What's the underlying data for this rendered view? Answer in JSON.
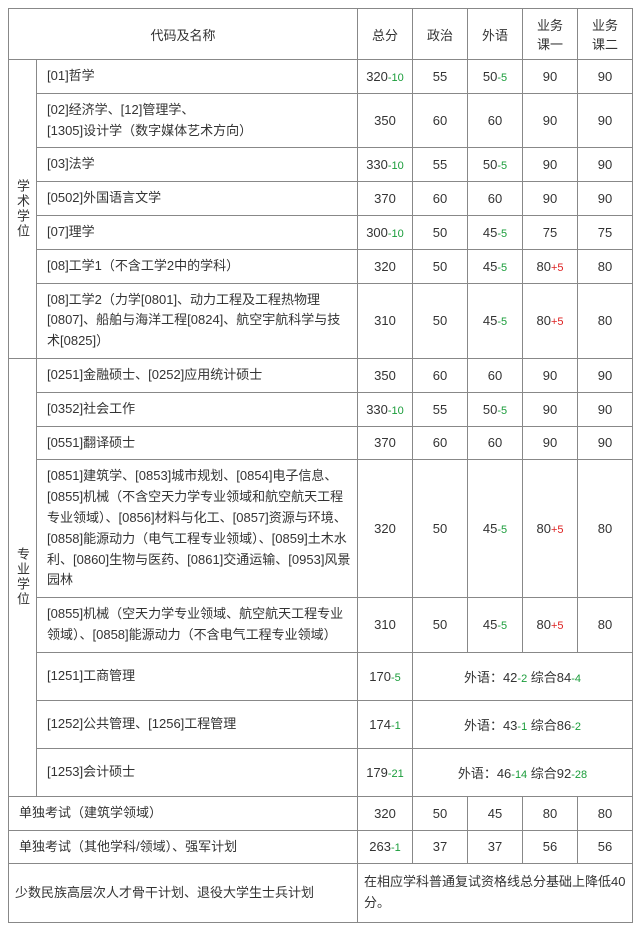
{
  "headers": {
    "name": "代码及名称",
    "total": "总分",
    "politics": "政治",
    "foreign": "外语",
    "biz1": "业务\n课一",
    "biz2": "业务\n课二"
  },
  "cat1": "学术学位",
  "cat2": "专业学位",
  "rows_academic": [
    {
      "name": "[01]哲学",
      "total": "320",
      "total_d": "-10",
      "pol": "55",
      "pol_d": "",
      "for": "50",
      "for_d": "-5",
      "b1": "90",
      "b1_d": "",
      "b2": "90",
      "b2_d": ""
    },
    {
      "name": "[02]经济学、[12]管理学、\n[1305]设计学（数字媒体艺术方向）",
      "total": "350",
      "total_d": "",
      "pol": "60",
      "pol_d": "",
      "for": "60",
      "for_d": "",
      "b1": "90",
      "b1_d": "",
      "b2": "90",
      "b2_d": ""
    },
    {
      "name": "[03]法学",
      "total": "330",
      "total_d": "-10",
      "pol": "55",
      "pol_d": "",
      "for": "50",
      "for_d": "-5",
      "b1": "90",
      "b1_d": "",
      "b2": "90",
      "b2_d": ""
    },
    {
      "name": "[0502]外国语言文学",
      "total": "370",
      "total_d": "",
      "pol": "60",
      "pol_d": "",
      "for": "60",
      "for_d": "",
      "b1": "90",
      "b1_d": "",
      "b2": "90",
      "b2_d": ""
    },
    {
      "name": "[07]理学",
      "total": "300",
      "total_d": "-10",
      "pol": "50",
      "pol_d": "",
      "for": "45",
      "for_d": "-5",
      "b1": "75",
      "b1_d": "",
      "b2": "75",
      "b2_d": ""
    },
    {
      "name": "[08]工学1（不含工学2中的学科）",
      "total": "320",
      "total_d": "",
      "pol": "50",
      "pol_d": "",
      "for": "45",
      "for_d": "-5",
      "b1": "80",
      "b1_d": "+5",
      "b2": "80",
      "b2_d": ""
    },
    {
      "name": "[08]工学2（力学[0801]、动力工程及工程热物理[0807]、船舶与海洋工程[0824]、航空宇航科学与技术[0825]）",
      "total": "310",
      "total_d": "",
      "pol": "50",
      "pol_d": "",
      "for": "45",
      "for_d": "-5",
      "b1": "80",
      "b1_d": "+5",
      "b2": "80",
      "b2_d": ""
    }
  ],
  "rows_pro": [
    {
      "name": "[0251]金融硕士、[0252]应用统计硕士",
      "total": "350",
      "total_d": "",
      "pol": "60",
      "pol_d": "",
      "for": "60",
      "for_d": "",
      "b1": "90",
      "b1_d": "",
      "b2": "90",
      "b2_d": ""
    },
    {
      "name": "[0352]社会工作",
      "total": "330",
      "total_d": "-10",
      "pol": "55",
      "pol_d": "",
      "for": "50",
      "for_d": "-5",
      "b1": "90",
      "b1_d": "",
      "b2": "90",
      "b2_d": ""
    },
    {
      "name": "[0551]翻译硕士",
      "total": "370",
      "total_d": "",
      "pol": "60",
      "pol_d": "",
      "for": "60",
      "for_d": "",
      "b1": "90",
      "b1_d": "",
      "b2": "90",
      "b2_d": ""
    },
    {
      "name": "[0851]建筑学、[0853]城市规划、[0854]电子信息、[0855]机械（不含空天力学专业领域和航空航天工程专业领域）、[0856]材料与化工、[0857]资源与环境、[0858]能源动力（电气工程专业领域）、[0859]土木水利、[0860]生物与医药、[0861]交通运输、[0953]风景园林",
      "total": "320",
      "total_d": "",
      "pol": "50",
      "pol_d": "",
      "for": "45",
      "for_d": "-5",
      "b1": "80",
      "b1_d": "+5",
      "b2": "80",
      "b2_d": ""
    },
    {
      "name": "[0855]机械（空天力学专业领域、航空航天工程专业领域）、[0858]能源动力（不含电气工程专业领域）",
      "total": "310",
      "total_d": "",
      "pol": "50",
      "pol_d": "",
      "for": "45",
      "for_d": "-5",
      "b1": "80",
      "b1_d": "+5",
      "b2": "80",
      "b2_d": ""
    }
  ],
  "rows_merged": [
    {
      "name": "[1251]工商管理",
      "total": "170",
      "total_d": "-5",
      "merged_a": "外语：42",
      "merged_a_d": "-2",
      "merged_b": "综合84",
      "merged_b_d": "-4"
    },
    {
      "name": "[1252]公共管理、[1256]工程管理",
      "total": "174",
      "total_d": "-1",
      "merged_a": "外语：43",
      "merged_a_d": "-1",
      "merged_b": "综合86",
      "merged_b_d": "-2"
    },
    {
      "name": "[1253]会计硕士",
      "total": "179",
      "total_d": "-21",
      "merged_a": "外语：46",
      "merged_a_d": "-14",
      "merged_b": "综合92",
      "merged_b_d": "-28"
    }
  ],
  "rows_bottom": [
    {
      "name": "单独考试（建筑学领域）",
      "total": "320",
      "total_d": "",
      "pol": "50",
      "pol_d": "",
      "for": "45",
      "for_d": "",
      "b1": "80",
      "b1_d": "",
      "b2": "80",
      "b2_d": ""
    },
    {
      "name": "单独考试（其他学科/领域）、强军计划",
      "total": "263",
      "total_d": "-1",
      "pol": "37",
      "pol_d": "",
      "for": "37",
      "for_d": "",
      "b1": "56",
      "b1_d": "",
      "b2": "56",
      "b2_d": ""
    }
  ],
  "footer_left": "少数民族高层次人才骨干计划、退役大学生士兵计划",
  "footer_right": "在相应学科普通复试资格线总分基础上降低40分。"
}
